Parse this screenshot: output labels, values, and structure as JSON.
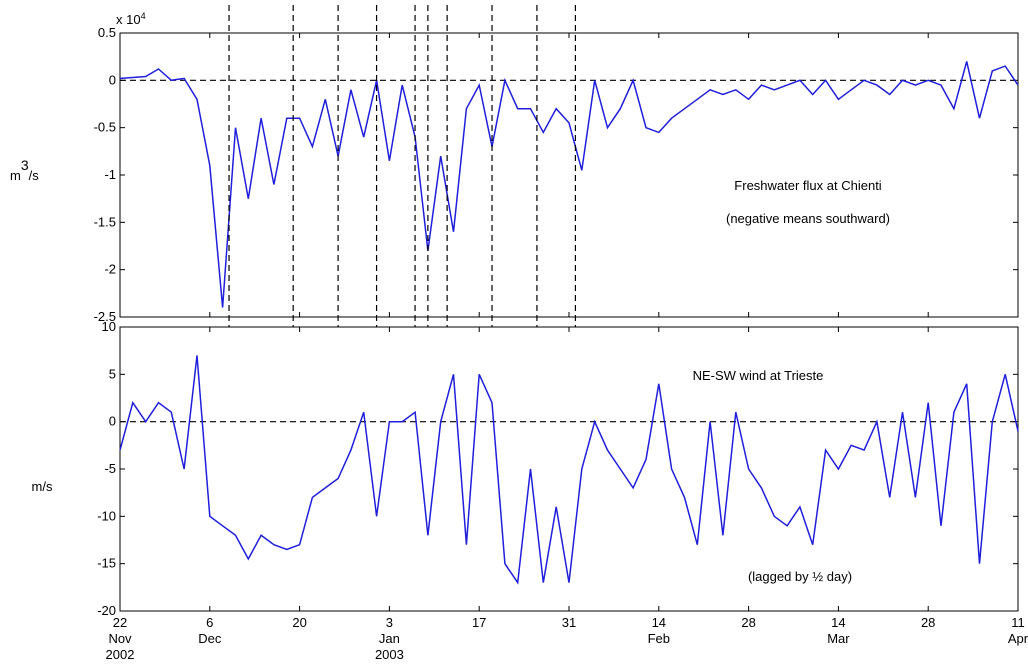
{
  "chart_data": [
    {
      "type": "line",
      "scale_label": {
        "base": "x 10",
        "exponent": "4"
      },
      "ylabel": {
        "base": "m",
        "exponent": "3",
        "rest": "/s"
      },
      "annotations": [
        "Freshwater flux at Chienti",
        "(negative means southward)"
      ],
      "x": [
        "2002-11-22",
        "2002-11-24",
        "2002-11-26",
        "2002-11-28",
        "2002-11-30",
        "2002-12-02",
        "2002-12-04",
        "2002-12-06",
        "2002-12-08",
        "2002-12-10",
        "2002-12-12",
        "2002-12-14",
        "2002-12-16",
        "2002-12-18",
        "2002-12-20",
        "2002-12-22",
        "2002-12-24",
        "2002-12-26",
        "2002-12-28",
        "2002-12-30",
        "2003-01-01",
        "2003-01-03",
        "2003-01-05",
        "2003-01-07",
        "2003-01-09",
        "2003-01-11",
        "2003-01-13",
        "2003-01-15",
        "2003-01-17",
        "2003-01-19",
        "2003-01-21",
        "2003-01-23",
        "2003-01-25",
        "2003-01-27",
        "2003-01-29",
        "2003-01-31",
        "2003-02-02",
        "2003-02-04",
        "2003-02-06",
        "2003-02-08",
        "2003-02-10",
        "2003-02-12",
        "2003-02-14",
        "2003-02-16",
        "2003-02-18",
        "2003-02-20",
        "2003-02-22",
        "2003-02-24",
        "2003-02-26",
        "2003-02-28",
        "2003-03-02",
        "2003-03-04",
        "2003-03-06",
        "2003-03-08",
        "2003-03-10",
        "2003-03-12",
        "2003-03-14",
        "2003-03-16",
        "2003-03-18",
        "2003-03-20",
        "2003-03-22",
        "2003-03-24",
        "2003-03-26",
        "2003-03-28",
        "2003-03-30",
        "2003-04-01",
        "2003-04-03",
        "2003-04-05",
        "2003-04-07",
        "2003-04-09",
        "2003-04-11"
      ],
      "series": [
        {
          "color": "#1f1fdc",
          "values": [
            0.02,
            0.03,
            0.04,
            0.12,
            0.0,
            0.02,
            -0.2,
            -0.9,
            -2.4,
            -0.5,
            -1.25,
            -0.4,
            -1.1,
            -0.4,
            -0.4,
            -0.7,
            -0.2,
            -0.8,
            -0.1,
            -0.6,
            0.0,
            -0.85,
            -0.05,
            -0.6,
            -1.8,
            -0.8,
            -1.6,
            -0.3,
            -0.05,
            -0.7,
            0.0,
            -0.3,
            -0.3,
            -0.55,
            -0.3,
            -0.45,
            -0.95,
            0.0,
            -0.5,
            -0.3,
            0.0,
            -0.5,
            -0.55,
            -0.4,
            -0.3,
            -0.2,
            -0.1,
            -0.15,
            -0.1,
            -0.2,
            -0.05,
            -0.1,
            -0.05,
            0.0,
            -0.15,
            0.0,
            -0.2,
            -0.1,
            0.0,
            -0.05,
            -0.15,
            0.0,
            -0.05,
            0.0,
            -0.05,
            -0.3,
            0.2,
            -0.4,
            0.1,
            0.15,
            -0.05
          ]
        }
      ],
      "xlim": [
        "2002-11-22",
        "2003-04-11"
      ],
      "ylim": [
        -2.5,
        0.5
      ],
      "yticks": [
        0.5,
        0,
        -0.5,
        -1,
        -1.5,
        -2,
        -2.5
      ],
      "hline": 0,
      "vlines": [
        "2002-12-09",
        "2002-12-19",
        "2002-12-26",
        "2003-01-01",
        "2003-01-07",
        "2003-01-09",
        "2003-01-12",
        "2003-01-19",
        "2003-01-26",
        "2003-02-01"
      ]
    },
    {
      "type": "line",
      "ylabel": "m/s",
      "annotations": [
        "NE-SW wind at Trieste",
        "(lagged by ½ day)"
      ],
      "x": [
        "2002-11-22",
        "2002-11-24",
        "2002-11-26",
        "2002-11-28",
        "2002-11-30",
        "2002-12-02",
        "2002-12-04",
        "2002-12-06",
        "2002-12-08",
        "2002-12-10",
        "2002-12-12",
        "2002-12-14",
        "2002-12-16",
        "2002-12-18",
        "2002-12-20",
        "2002-12-22",
        "2002-12-24",
        "2002-12-26",
        "2002-12-28",
        "2002-12-30",
        "2003-01-01",
        "2003-01-03",
        "2003-01-05",
        "2003-01-07",
        "2003-01-09",
        "2003-01-11",
        "2003-01-13",
        "2003-01-15",
        "2003-01-17",
        "2003-01-19",
        "2003-01-21",
        "2003-01-23",
        "2003-01-25",
        "2003-01-27",
        "2003-01-29",
        "2003-01-31",
        "2003-02-02",
        "2003-02-04",
        "2003-02-06",
        "2003-02-08",
        "2003-02-10",
        "2003-02-12",
        "2003-02-14",
        "2003-02-16",
        "2003-02-18",
        "2003-02-20",
        "2003-02-22",
        "2003-02-24",
        "2003-02-26",
        "2003-02-28",
        "2003-03-02",
        "2003-03-04",
        "2003-03-06",
        "2003-03-08",
        "2003-03-10",
        "2003-03-12",
        "2003-03-14",
        "2003-03-16",
        "2003-03-18",
        "2003-03-20",
        "2003-03-22",
        "2003-03-24",
        "2003-03-26",
        "2003-03-28",
        "2003-03-30",
        "2003-04-01",
        "2003-04-03",
        "2003-04-05",
        "2003-04-07",
        "2003-04-09",
        "2003-04-11"
      ],
      "series": [
        {
          "color": "#1f1fdc",
          "values": [
            -3,
            2,
            0,
            2,
            1,
            -5,
            7,
            -10,
            -11,
            -12,
            -14.5,
            -12,
            -13,
            -13.5,
            -13,
            -8,
            -7,
            -6,
            -3,
            1,
            -10,
            0,
            0,
            1,
            -12,
            0,
            5,
            -13,
            5,
            2,
            -15,
            -17,
            -5,
            -17,
            -9,
            -17,
            -5,
            0,
            -3,
            -5,
            -7,
            -4,
            4,
            -5,
            -8,
            -13,
            0,
            -12,
            1,
            -5,
            -7,
            -10,
            -11,
            -9,
            -13,
            -3,
            -5,
            -2.5,
            -3,
            0,
            -8,
            1,
            -8,
            2,
            -11,
            1,
            4,
            -15,
            0,
            5,
            -1
          ]
        }
      ],
      "xlim": [
        "2002-11-22",
        "2003-04-11"
      ],
      "ylim": [
        -20,
        10
      ],
      "yticks": [
        10,
        5,
        0,
        -5,
        -10,
        -15,
        -20
      ],
      "hline": 0,
      "xticks": [
        {
          "value": "2002-11-22",
          "label": [
            "22",
            "Nov",
            "2002"
          ]
        },
        {
          "value": "2002-12-06",
          "label": [
            "6",
            "Dec"
          ]
        },
        {
          "value": "2002-12-20",
          "label": [
            "20"
          ]
        },
        {
          "value": "2003-01-03",
          "label": [
            "3",
            "Jan",
            "2003"
          ]
        },
        {
          "value": "2003-01-17",
          "label": [
            "17"
          ]
        },
        {
          "value": "2003-01-31",
          "label": [
            "31"
          ]
        },
        {
          "value": "2003-02-14",
          "label": [
            "14",
            "Feb"
          ]
        },
        {
          "value": "2003-02-28",
          "label": [
            "28"
          ]
        },
        {
          "value": "2003-03-14",
          "label": [
            "14",
            "Mar"
          ]
        },
        {
          "value": "2003-03-28",
          "label": [
            "28"
          ]
        },
        {
          "value": "2003-04-11",
          "label": [
            "11",
            "Apr"
          ]
        }
      ]
    }
  ]
}
